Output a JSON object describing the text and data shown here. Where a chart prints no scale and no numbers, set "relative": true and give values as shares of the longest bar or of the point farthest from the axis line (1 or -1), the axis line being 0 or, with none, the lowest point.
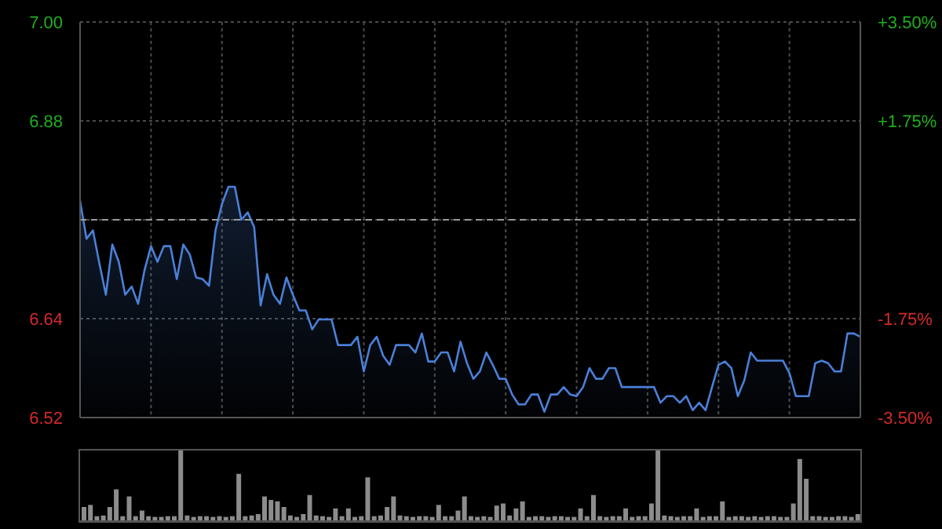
{
  "chart_data": [
    {
      "type": "area",
      "categories": [
        null,
        null,
        null,
        null,
        null,
        null,
        null,
        null,
        null,
        null,
        null,
        null,
        null,
        null,
        null,
        null,
        null,
        null,
        null,
        null,
        null,
        null,
        null,
        null,
        null,
        null,
        null,
        null,
        null,
        null,
        null,
        null,
        null,
        null,
        null,
        null,
        null,
        null,
        null,
        null,
        null,
        null,
        null,
        null,
        null,
        null,
        null,
        null,
        null,
        null,
        null,
        null,
        null,
        null,
        null,
        null,
        null,
        null,
        null,
        null,
        null,
        null,
        null,
        null,
        null,
        null,
        null,
        null,
        null,
        null,
        null,
        null,
        null,
        null,
        null,
        null,
        null,
        null,
        null,
        null,
        null,
        null,
        null,
        null,
        null,
        null,
        null,
        null,
        null,
        null,
        null,
        null,
        null,
        null,
        null,
        null,
        null,
        null,
        null,
        null,
        null,
        null,
        null,
        null,
        null,
        null,
        null,
        null,
        null,
        null,
        null,
        null,
        null,
        null,
        null,
        null,
        null,
        null,
        null,
        null,
        null,
        null
      ],
      "series": [
        {
          "color": "#4a80d8",
          "values": [
            6.783,
            6.737,
            6.747,
            6.707,
            6.669,
            6.73,
            6.709,
            6.669,
            6.679,
            6.658,
            6.699,
            6.728,
            6.709,
            6.728,
            6.728,
            6.688,
            6.73,
            6.718,
            6.69,
            6.688,
            6.68,
            6.747,
            6.779,
            6.8,
            6.8,
            6.76,
            6.769,
            6.751,
            6.656,
            6.694,
            6.669,
            6.658,
            6.69,
            6.669,
            6.65,
            6.65,
            6.627,
            6.639,
            6.639,
            6.639,
            6.608,
            6.608,
            6.608,
            6.618,
            6.576,
            6.608,
            6.618,
            6.595,
            6.584,
            6.608,
            6.608,
            6.608,
            6.599,
            6.622,
            6.588,
            6.588,
            6.599,
            6.599,
            6.576,
            6.612,
            6.586,
            6.567,
            6.576,
            6.599,
            6.584,
            6.567,
            6.567,
            6.548,
            6.536,
            6.536,
            6.548,
            6.548,
            6.527,
            6.548,
            6.548,
            6.557,
            6.548,
            6.546,
            6.557,
            6.58,
            6.567,
            6.567,
            6.58,
            6.58,
            6.557,
            6.557,
            6.557,
            6.557,
            6.557,
            6.557,
            6.538,
            6.546,
            6.546,
            6.538,
            6.546,
            6.529,
            6.538,
            6.529,
            6.557,
            6.584,
            6.588,
            6.58,
            6.546,
            6.565,
            6.599,
            6.589,
            6.589,
            6.589,
            6.589,
            6.589,
            6.574,
            6.546,
            6.546,
            6.546,
            6.586,
            6.589,
            6.586,
            6.576,
            6.576,
            6.622,
            6.622,
            6.618
          ]
        }
      ],
      "ylim": [
        6.52,
        7.0
      ],
      "yticks": [
        6.52,
        6.64,
        {
          "value": 6.76,
          "label": null
        },
        6.88,
        {
          "value": 7.0,
          "label": "7.00"
        }
      ],
      "y2lim": [
        -3.5,
        3.5
      ],
      "y2ticks": [
        {
          "value": -3.5,
          "label": "-3.50%"
        },
        {
          "value": -1.75,
          "label": "-1.75%"
        },
        {
          "value": 0,
          "label": null
        },
        {
          "value": 1.75,
          "label": "+1.75%"
        },
        {
          "value": 3.5,
          "label": "+3.50%"
        }
      ],
      "ref_lines": [
        {
          "axis": "y",
          "value": 6.76,
          "color": "#9a9a9a",
          "line_style": "dashed"
        }
      ],
      "grid": true,
      "marker": "none"
    },
    {
      "type": "bar",
      "relative": true,
      "color": "#8c8c8c",
      "categories": [
        null,
        null,
        null,
        null,
        null,
        null,
        null,
        null,
        null,
        null,
        null,
        null,
        null,
        null,
        null,
        null,
        null,
        null,
        null,
        null,
        null,
        null,
        null,
        null,
        null,
        null,
        null,
        null,
        null,
        null,
        null,
        null,
        null,
        null,
        null,
        null,
        null,
        null,
        null,
        null,
        null,
        null,
        null,
        null,
        null,
        null,
        null,
        null,
        null,
        null,
        null,
        null,
        null,
        null,
        null,
        null,
        null,
        null,
        null,
        null,
        null,
        null,
        null,
        null,
        null,
        null,
        null,
        null,
        null,
        null,
        null,
        null,
        null,
        null,
        null,
        null,
        null,
        null,
        null,
        null,
        null,
        null,
        null,
        null,
        null,
        null,
        null,
        null,
        null,
        null,
        null,
        null,
        null,
        null,
        null,
        null,
        null,
        null,
        null,
        null,
        null,
        null,
        null,
        null,
        null,
        null,
        null,
        null,
        null,
        null,
        null,
        null,
        null,
        null,
        null,
        null,
        null,
        null,
        null,
        null,
        null
      ],
      "values": [
        0.2,
        0.23,
        0.07,
        0.08,
        0.2,
        0.45,
        0.07,
        0.35,
        0.07,
        0.15,
        0.07,
        0.06,
        0.06,
        0.07,
        0.07,
        1.0,
        0.08,
        0.06,
        0.07,
        0.07,
        0.06,
        0.07,
        0.06,
        0.07,
        0.67,
        0.07,
        0.08,
        0.1,
        0.35,
        0.3,
        0.28,
        0.2,
        0.08,
        0.06,
        0.1,
        0.37,
        0.08,
        0.07,
        0.06,
        0.18,
        0.07,
        0.18,
        0.06,
        0.07,
        0.62,
        0.07,
        0.08,
        0.2,
        0.35,
        0.08,
        0.07,
        0.06,
        0.07,
        0.07,
        0.06,
        0.23,
        0.07,
        0.07,
        0.15,
        0.35,
        0.07,
        0.06,
        0.07,
        0.06,
        0.22,
        0.25,
        0.08,
        0.18,
        0.28,
        0.06,
        0.07,
        0.07,
        0.06,
        0.07,
        0.07,
        0.06,
        0.06,
        0.18,
        0.07,
        0.37,
        0.07,
        0.06,
        0.07,
        0.07,
        0.18,
        0.06,
        0.07,
        0.07,
        0.25,
        1.0,
        0.08,
        0.07,
        0.06,
        0.07,
        0.07,
        0.18,
        0.06,
        0.07,
        0.07,
        0.28,
        0.06,
        0.07,
        0.07,
        0.06,
        0.07,
        0.06,
        0.07,
        0.07,
        0.06,
        0.06,
        0.25,
        0.88,
        0.6,
        0.07,
        0.07,
        0.06,
        0.06,
        0.07,
        0.07,
        0.06,
        0.1
      ]
    }
  ]
}
